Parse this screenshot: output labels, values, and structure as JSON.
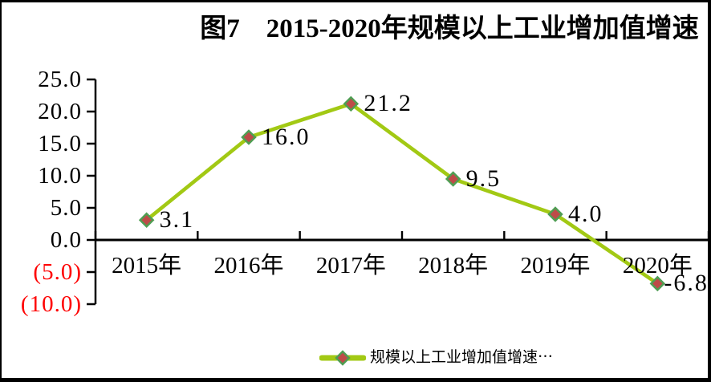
{
  "title": "图7    2015-2020年规模以上工业增加值增速",
  "colors": {
    "line": "#a2c914",
    "marker_fill": "#be4b48",
    "marker_border": "#4f9e53",
    "axis": "#000000",
    "text": "#000000",
    "negative_label": "#fe0000"
  },
  "legend": {
    "label": "规模以上工业增加值增速⋯"
  },
  "chart_data": {
    "type": "line",
    "title": "图7 2015-2020年规模以上工业增加值增速",
    "categories": [
      "2015年",
      "2016年",
      "2017年",
      "2018年",
      "2019年",
      "2020年"
    ],
    "series": [
      {
        "name": "规模以上工业增加值增速",
        "values": [
          3.1,
          16.0,
          21.2,
          9.5,
          4.0,
          -6.8
        ]
      }
    ],
    "data_labels": [
      "3.1",
      "16.0",
      "21.2",
      "9.5",
      "4.0",
      "-6.8"
    ],
    "y_ticks": [
      25,
      20,
      15,
      10,
      5,
      0,
      -5,
      -10
    ],
    "y_tick_labels": [
      "25.0",
      "20.0",
      "15.0",
      "10.0",
      "5.0",
      "0.0",
      "(5.0)",
      "(10.0)"
    ],
    "ylim": [
      -10,
      25
    ],
    "xlabel": "",
    "ylabel": "",
    "grid": false,
    "legend_position": "bottom",
    "negative_labels_in_red_parentheses": true
  }
}
